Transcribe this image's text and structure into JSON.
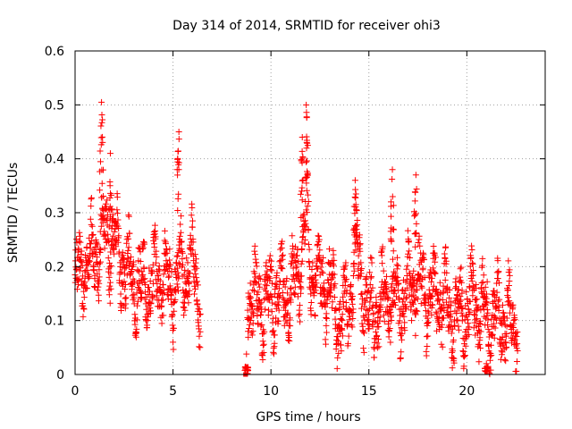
{
  "chart_data": {
    "type": "scatter",
    "title": "Day 314 of 2014, SRMTID for receiver ohi3",
    "xlabel": "GPS time / hours",
    "ylabel": "SRMTID / TECUs",
    "xlim": [
      0,
      24
    ],
    "ylim": [
      0,
      0.6
    ],
    "x_ticks": [
      0,
      5,
      10,
      15,
      20
    ],
    "y_ticks": [
      0,
      0.1,
      0.2,
      0.3,
      0.4,
      0.5,
      0.6
    ],
    "x_tick_labels": [
      "0",
      "5",
      "10",
      "15",
      "20"
    ],
    "y_tick_labels": [
      "0",
      "0.1",
      "0.2",
      "0.3",
      "0.4",
      "0.5",
      "0.6"
    ],
    "grid": true,
    "marker": "+",
    "series_color": "#ff0000",
    "series": [
      {
        "name": "SRMTID",
        "profile_note": "approximate envelope of the dense point cloud (hour, typical value, spread)",
        "segments": [
          {
            "x_start": 0.0,
            "x_end": 6.4,
            "x_step": 0.01
          },
          {
            "x_start": 8.8,
            "x_end": 22.6,
            "x_step": 0.01
          }
        ],
        "baseline": [
          [
            0.0,
            0.17
          ],
          [
            0.5,
            0.2
          ],
          [
            1.0,
            0.22
          ],
          [
            1.5,
            0.26
          ],
          [
            2.0,
            0.24
          ],
          [
            2.5,
            0.2
          ],
          [
            3.0,
            0.17
          ],
          [
            3.5,
            0.16
          ],
          [
            4.0,
            0.17
          ],
          [
            4.5,
            0.18
          ],
          [
            5.0,
            0.16
          ],
          [
            5.5,
            0.2
          ],
          [
            6.0,
            0.2
          ],
          [
            6.4,
            0.15
          ],
          [
            8.8,
            0.15
          ],
          [
            9.5,
            0.13
          ],
          [
            10.0,
            0.14
          ],
          [
            10.5,
            0.16
          ],
          [
            11.0,
            0.15
          ],
          [
            11.5,
            0.2
          ],
          [
            11.8,
            0.3
          ],
          [
            12.0,
            0.2
          ],
          [
            12.5,
            0.17
          ],
          [
            13.0,
            0.16
          ],
          [
            13.5,
            0.1
          ],
          [
            14.0,
            0.12
          ],
          [
            14.3,
            0.25
          ],
          [
            14.7,
            0.15
          ],
          [
            15.0,
            0.11
          ],
          [
            15.5,
            0.12
          ],
          [
            16.0,
            0.15
          ],
          [
            16.5,
            0.13
          ],
          [
            17.0,
            0.15
          ],
          [
            17.5,
            0.17
          ],
          [
            18.0,
            0.14
          ],
          [
            18.5,
            0.15
          ],
          [
            19.0,
            0.12
          ],
          [
            19.5,
            0.1
          ],
          [
            20.0,
            0.12
          ],
          [
            20.5,
            0.14
          ],
          [
            21.0,
            0.1
          ],
          [
            21.5,
            0.11
          ],
          [
            22.0,
            0.1
          ],
          [
            22.6,
            0.1
          ]
        ],
        "spikes": [
          {
            "x": 1.35,
            "y": 0.505
          },
          {
            "x": 1.8,
            "y": 0.41
          },
          {
            "x": 5.3,
            "y": 0.45
          },
          {
            "x": 11.8,
            "y": 0.5
          },
          {
            "x": 11.6,
            "y": 0.44
          },
          {
            "x": 14.3,
            "y": 0.36
          },
          {
            "x": 16.2,
            "y": 0.38
          },
          {
            "x": 17.4,
            "y": 0.37
          },
          {
            "x": 8.75,
            "y": 0.038
          },
          {
            "x": 21.0,
            "y": 0.02
          }
        ],
        "isolated_points": [
          {
            "x": 8.7,
            "y": 0.0
          }
        ]
      }
    ]
  }
}
